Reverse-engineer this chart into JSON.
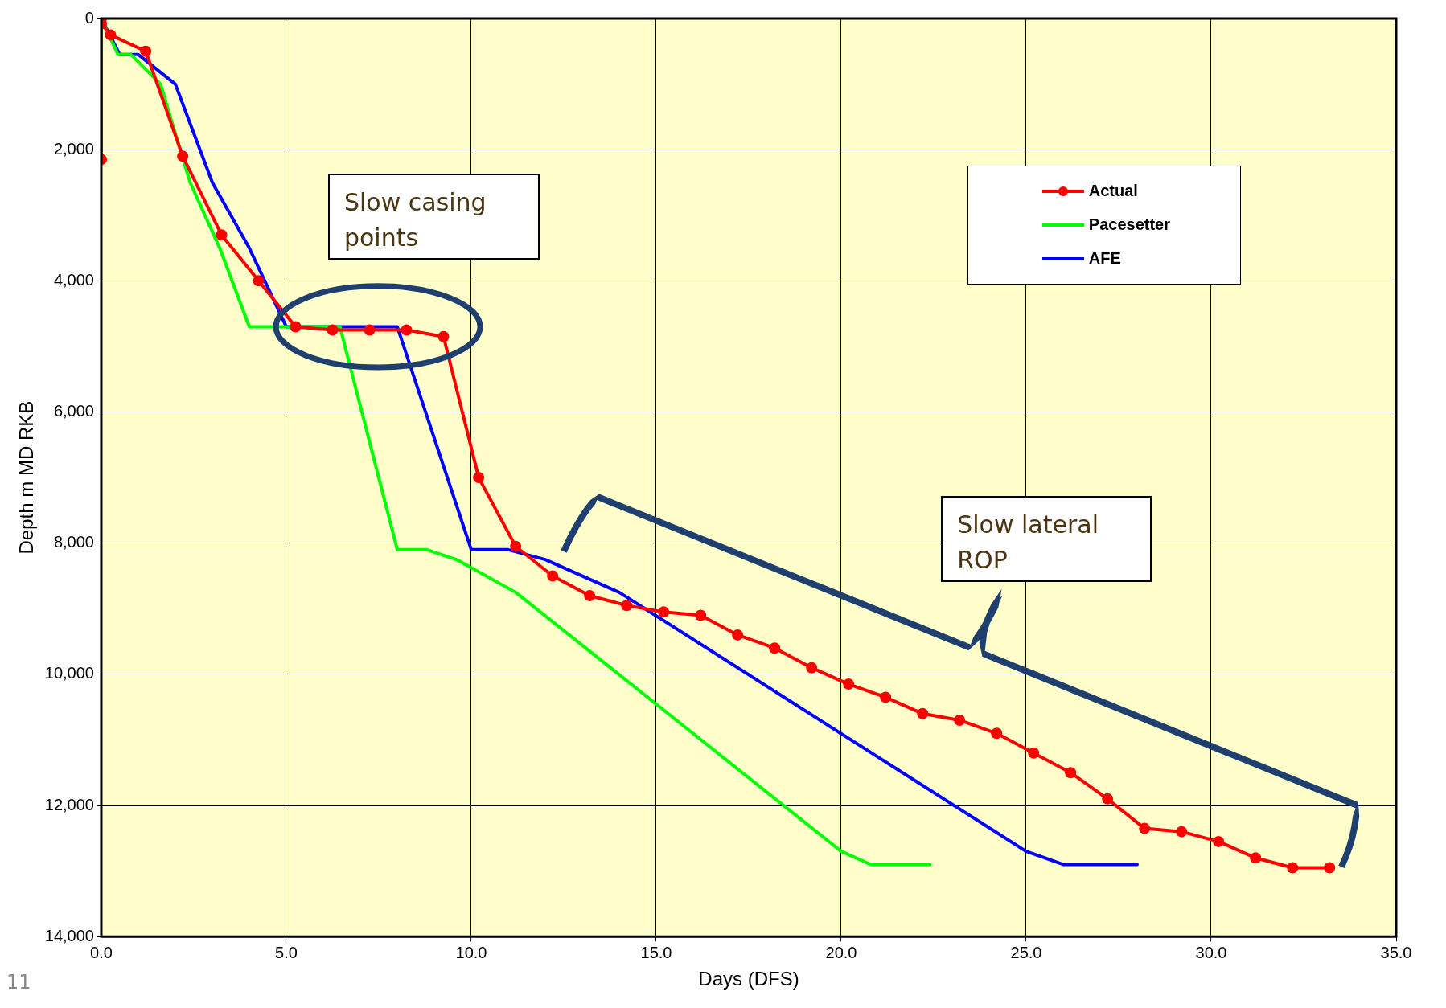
{
  "chart_data": {
    "type": "line",
    "xlabel": "Days (DFS)",
    "ylabel": "Depth m MD RKB",
    "xlim": [
      0,
      35
    ],
    "ylim": [
      14000,
      0
    ],
    "xticks": [
      {
        "value": 0,
        "label": "0.0"
      },
      {
        "value": 5,
        "label": "5.0"
      },
      {
        "value": 10,
        "label": "10.0"
      },
      {
        "value": 15,
        "label": "15.0"
      },
      {
        "value": 20,
        "label": "20.0"
      },
      {
        "value": 25,
        "label": "25.0"
      },
      {
        "value": 30,
        "label": "30.0"
      },
      {
        "value": 35,
        "label": "35.0"
      }
    ],
    "yticks": [
      {
        "value": 0,
        "label": "0"
      },
      {
        "value": 2000,
        "label": "2,000"
      },
      {
        "value": 4000,
        "label": "4,000"
      },
      {
        "value": 6000,
        "label": "6,000"
      },
      {
        "value": 8000,
        "label": "8,000"
      },
      {
        "value": 10000,
        "label": "10,000"
      },
      {
        "value": 12000,
        "label": "12,000"
      },
      {
        "value": 14000,
        "label": "14,000"
      }
    ],
    "grid": true,
    "legend": "top right",
    "line_style": "solid",
    "series": [
      {
        "name": "Actual",
        "color": "#ff0000",
        "marker": "circle",
        "x": [
          0,
          0,
          0,
          0.25,
          1.2,
          2.2,
          3.25,
          4.25,
          5.25,
          6.25,
          7.25,
          8.25,
          9.25,
          10.2,
          11.2,
          12.2,
          13.2,
          14.2,
          15.2,
          16.2,
          17.2,
          18.2,
          19.2,
          20.2,
          21.2,
          22.2,
          23.2,
          24.2,
          25.2,
          26.2,
          27.2,
          28.2,
          29.2,
          30.2,
          31.2,
          32.2,
          33.2
        ],
        "values": [
          0,
          2150,
          80,
          250,
          500,
          2100,
          3300,
          4000,
          4700,
          4750,
          4750,
          4750,
          4850,
          7000,
          8050,
          8500,
          8800,
          8950,
          9050,
          9100,
          9400,
          9600,
          9900,
          10150,
          10350,
          10600,
          10700,
          10900,
          11200,
          11500,
          11900,
          12350,
          12400,
          12550,
          12800,
          12950,
          12950
        ]
      },
      {
        "name": "Pacesetter",
        "color": "#00ff00",
        "marker": "none",
        "x": [
          0,
          0.45,
          0.8,
          1.6,
          2.4,
          3.2,
          4.0,
          6.45,
          8.0,
          8.8,
          9.6,
          11.2,
          20.0,
          20.8,
          22.4
        ],
        "values": [
          0,
          550,
          550,
          1000,
          2500,
          3500,
          4700,
          4700,
          8100,
          8100,
          8250,
          8750,
          12700,
          12900,
          12900
        ]
      },
      {
        "name": "AFE",
        "color": "#0000ff",
        "marker": "none",
        "x": [
          0,
          0.5,
          1.0,
          2.0,
          3.0,
          4.0,
          5.0,
          8.0,
          10.0,
          11.0,
          12.0,
          14.0,
          25.0,
          26.0,
          28.0
        ],
        "values": [
          0,
          550,
          550,
          1000,
          2500,
          3500,
          4700,
          4700,
          8100,
          8100,
          8250,
          8750,
          12700,
          12900,
          12900
        ]
      }
    ],
    "annotations": [
      "Slow casing points",
      "Slow lateral ROP",
      "11"
    ]
  }
}
